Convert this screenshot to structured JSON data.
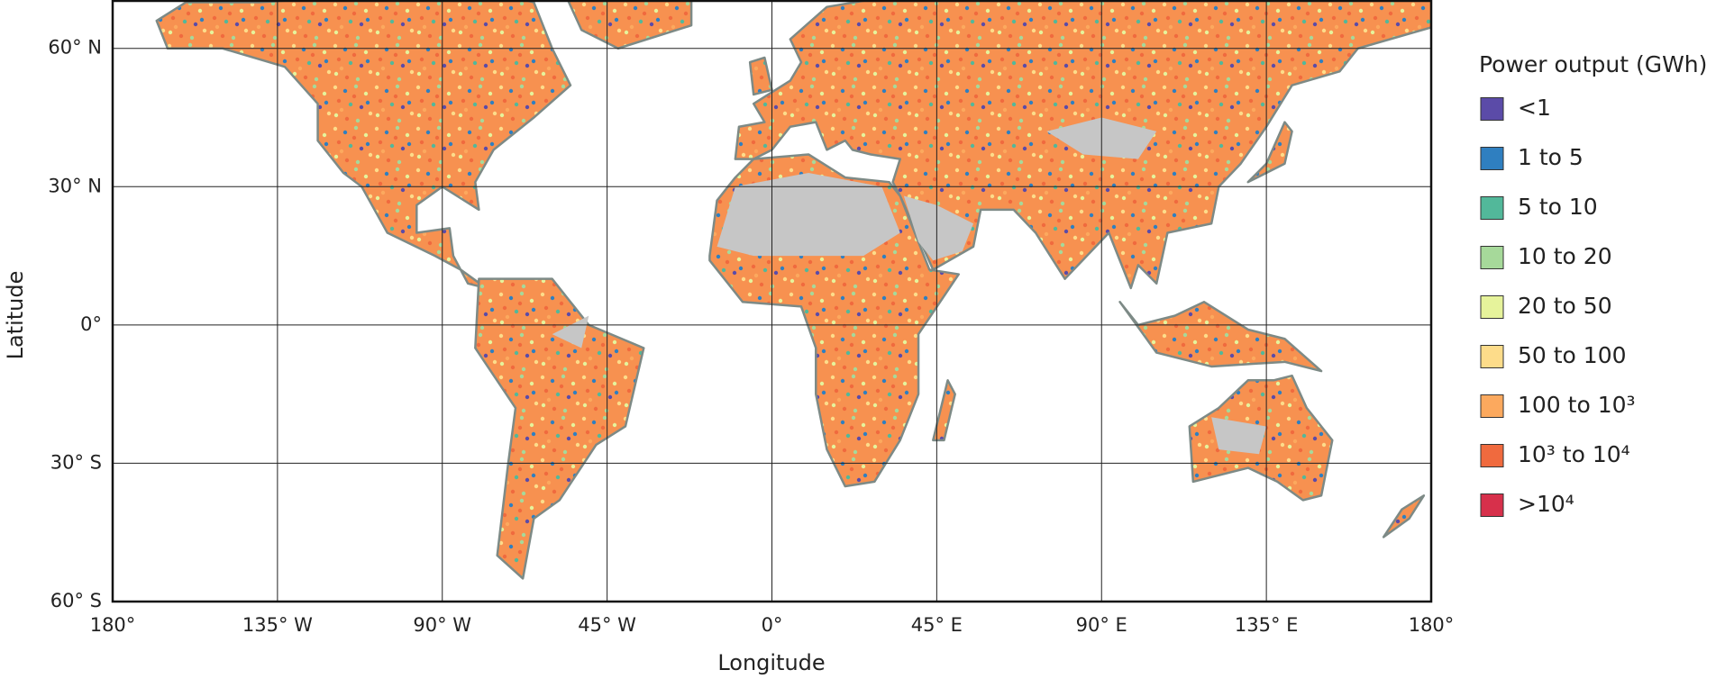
{
  "map": {
    "type": "map",
    "xlabel": "Longitude",
    "ylabel": "Latitude",
    "xlim": [
      -180,
      180
    ],
    "ylim": [
      -60,
      70.5
    ],
    "xticks": [
      {
        "value": -180,
        "label": "180°"
      },
      {
        "value": -135,
        "label": "135° W"
      },
      {
        "value": -90,
        "label": "90° W"
      },
      {
        "value": -45,
        "label": "45° W"
      },
      {
        "value": 0,
        "label": "0°"
      },
      {
        "value": 45,
        "label": "45° E"
      },
      {
        "value": 90,
        "label": "90° E"
      },
      {
        "value": 135,
        "label": "135° E"
      },
      {
        "value": 180,
        "label": "180°"
      }
    ],
    "yticks": [
      {
        "value": 60,
        "label": "60° N"
      },
      {
        "value": 30,
        "label": "30° N"
      },
      {
        "value": 0,
        "label": "0°"
      },
      {
        "value": -30,
        "label": "30° S"
      },
      {
        "value": -60,
        "label": "60° S"
      }
    ],
    "grid": true,
    "legend": {
      "title": "Power output (GWh)",
      "items": [
        {
          "label": "<1",
          "color": "#5b4ba8"
        },
        {
          "label": "1 to 5",
          "color": "#2f7fc0"
        },
        {
          "label": "5 to 10",
          "color": "#52b89a"
        },
        {
          "label": "10 to 20",
          "color": "#a6d99a"
        },
        {
          "label": "20 to 50",
          "color": "#e6f39b"
        },
        {
          "label": "50 to 100",
          "color": "#fddc8a"
        },
        {
          "label": "100 to 10³",
          "color": "#fca95e"
        },
        {
          "label": "10³ to 10⁴",
          "color": "#f06a3e"
        },
        {
          "label": ">10⁴",
          "color": "#d7304b"
        }
      ]
    }
  }
}
